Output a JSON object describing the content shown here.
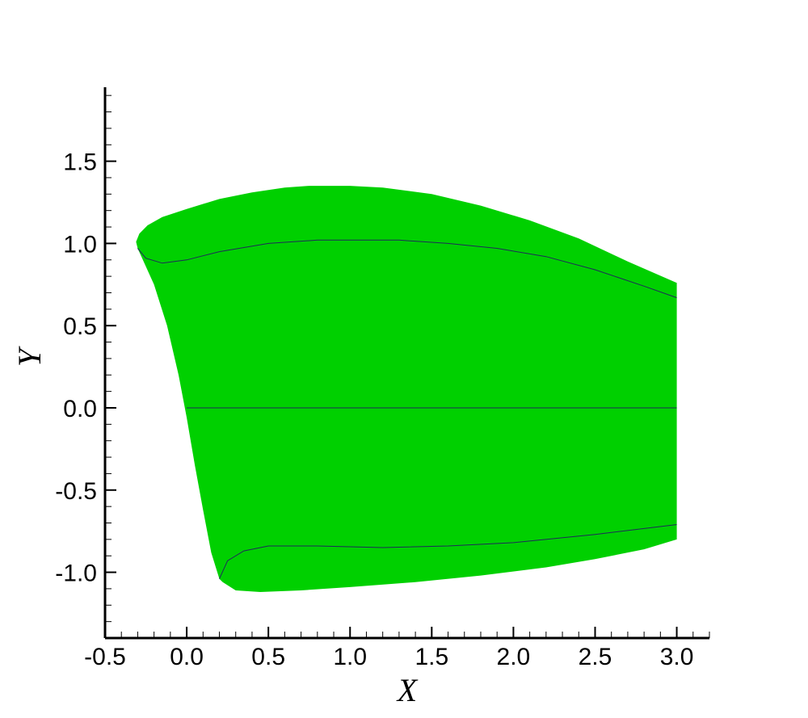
{
  "chart_data": {
    "type": "area",
    "xlabel": "X",
    "ylabel": "Y",
    "xlim": [
      -0.5,
      3.2
    ],
    "ylim": [
      -1.4,
      1.95
    ],
    "x_ticks": [
      -0.5,
      0.0,
      0.5,
      1.0,
      1.5,
      2.0,
      2.5,
      3.0
    ],
    "x_tick_labels": [
      "-0.5",
      "0.0",
      "0.5",
      "1.0",
      "1.5",
      "2.0",
      "2.5",
      "3.0"
    ],
    "y_ticks": [
      -1.0,
      -0.5,
      0.0,
      0.5,
      1.0,
      1.5
    ],
    "y_tick_labels": [
      "-1.0",
      "-0.5",
      "0.0",
      "0.5",
      "1.0",
      "1.5"
    ],
    "grid": false,
    "fill_color": "#00d000",
    "line_color": "#1f2a5a",
    "regions": [
      {
        "points": [
          [
            -0.3,
            0.97
          ],
          [
            -0.31,
            1.01
          ],
          [
            -0.29,
            1.06
          ],
          [
            -0.24,
            1.11
          ],
          [
            -0.15,
            1.16
          ],
          [
            0.0,
            1.21
          ],
          [
            0.2,
            1.27
          ],
          [
            0.4,
            1.31
          ],
          [
            0.6,
            1.34
          ],
          [
            0.75,
            1.35
          ],
          [
            1.0,
            1.35
          ],
          [
            1.2,
            1.34
          ],
          [
            1.5,
            1.3
          ],
          [
            1.8,
            1.23
          ],
          [
            2.1,
            1.14
          ],
          [
            2.4,
            1.03
          ],
          [
            2.7,
            0.89
          ],
          [
            3.0,
            0.76
          ],
          [
            3.0,
            -0.8
          ],
          [
            2.8,
            -0.86
          ],
          [
            2.5,
            -0.92
          ],
          [
            2.2,
            -0.97
          ],
          [
            1.8,
            -1.02
          ],
          [
            1.4,
            -1.06
          ],
          [
            1.0,
            -1.09
          ],
          [
            0.7,
            -1.11
          ],
          [
            0.45,
            -1.12
          ],
          [
            0.3,
            -1.11
          ],
          [
            0.22,
            -1.06
          ],
          [
            0.2,
            -1.04
          ],
          [
            0.15,
            -0.88
          ],
          [
            0.1,
            -0.62
          ],
          [
            0.05,
            -0.35
          ],
          [
            0.0,
            -0.06
          ],
          [
            -0.05,
            0.2
          ],
          [
            -0.12,
            0.5
          ],
          [
            -0.2,
            0.75
          ],
          [
            -0.3,
            0.97
          ]
        ]
      }
    ],
    "lines": [
      {
        "points": [
          [
            -0.3,
            0.97
          ],
          [
            -0.25,
            0.91
          ],
          [
            -0.15,
            0.88
          ],
          [
            0.0,
            0.9
          ],
          [
            0.2,
            0.95
          ],
          [
            0.5,
            1.0
          ],
          [
            0.8,
            1.02
          ],
          [
            1.0,
            1.02
          ],
          [
            1.3,
            1.02
          ],
          [
            1.6,
            1.0
          ],
          [
            1.9,
            0.97
          ],
          [
            2.2,
            0.92
          ],
          [
            2.5,
            0.84
          ],
          [
            2.8,
            0.74
          ],
          [
            3.0,
            0.67
          ]
        ]
      },
      {
        "points": [
          [
            0.0,
            0.0
          ],
          [
            3.0,
            0.0
          ]
        ]
      },
      {
        "points": [
          [
            0.2,
            -1.04
          ],
          [
            0.25,
            -0.93
          ],
          [
            0.35,
            -0.87
          ],
          [
            0.5,
            -0.84
          ],
          [
            0.8,
            -0.84
          ],
          [
            1.2,
            -0.85
          ],
          [
            1.6,
            -0.84
          ],
          [
            2.0,
            -0.82
          ],
          [
            2.5,
            -0.77
          ],
          [
            3.0,
            -0.71
          ]
        ]
      }
    ]
  }
}
